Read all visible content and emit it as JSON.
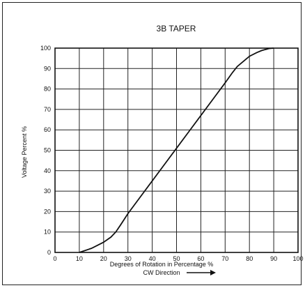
{
  "chart_data": {
    "type": "line",
    "title": "3B TAPER",
    "xlabel": "Degrees of Rotation in Percentage %",
    "xlabel_sub": "CW Direction",
    "ylabel": "Voltage Percent %",
    "xlim": [
      0,
      100
    ],
    "ylim": [
      0,
      100
    ],
    "x_ticks": [
      "0",
      "10",
      "20",
      "30",
      "40",
      "50",
      "60",
      "70",
      "80",
      "90",
      "100"
    ],
    "y_ticks": [
      "0",
      "10",
      "20",
      "30",
      "40",
      "50",
      "60",
      "70",
      "80",
      "90",
      "100"
    ],
    "grid": true,
    "legend": "none",
    "series": [
      {
        "color": "#111111",
        "x": [
          10,
          15,
          20,
          23,
          25,
          27,
          30,
          35,
          40,
          45,
          50,
          55,
          60,
          65,
          70,
          73,
          75,
          78,
          80,
          83,
          85,
          88,
          90
        ],
        "y": [
          0,
          2,
          5,
          7.5,
          10,
          13.5,
          19,
          27,
          35,
          43,
          51,
          59,
          67,
          75,
          83,
          88,
          91,
          94,
          96,
          97.8,
          98.8,
          99.8,
          100
        ]
      }
    ]
  }
}
